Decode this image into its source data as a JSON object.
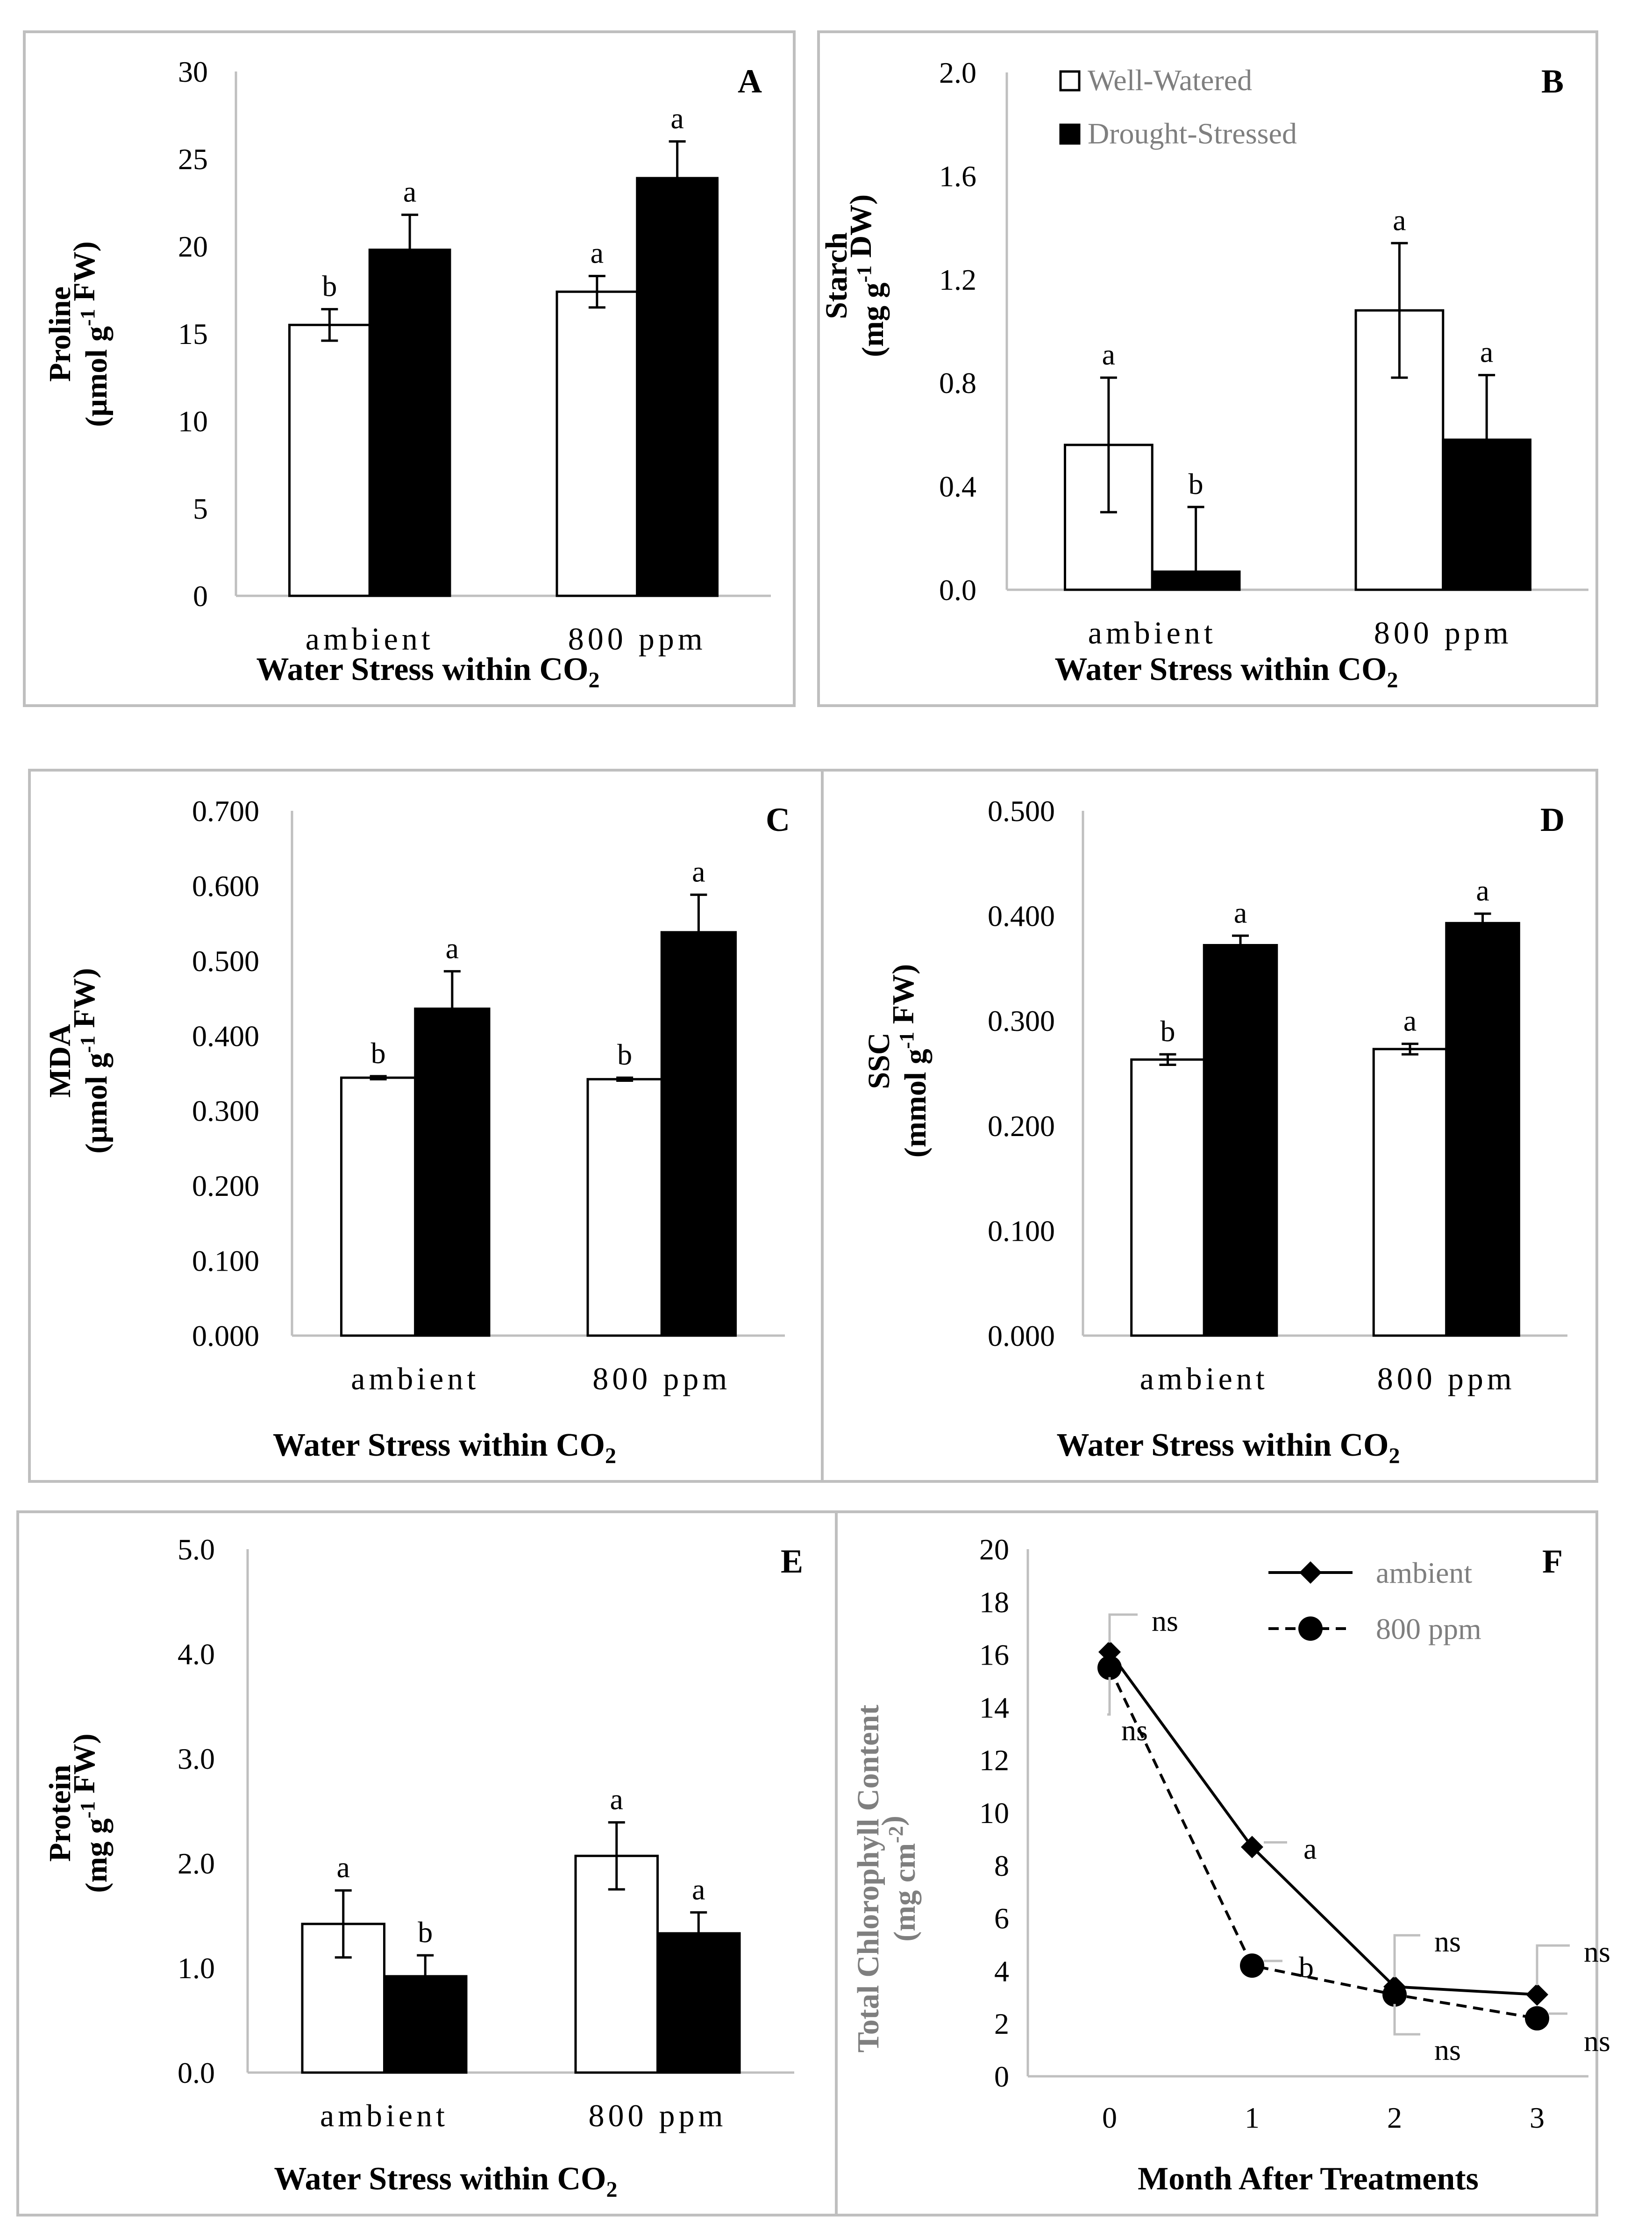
{
  "figure": {
    "legend": {
      "well_watered": "Well-Watered",
      "drought_stressed": "Drought-Stressed"
    },
    "colors": {
      "well_watered": "#ffffff",
      "drought_stressed": "#000000",
      "frame": "#bfbfbf",
      "axis": "#bfbfbf",
      "ink": "#000000",
      "gray_text": "#7f7f7f"
    }
  },
  "chart_data": [
    {
      "panel": "A",
      "type": "bar",
      "ylabel": "Proline",
      "ylabel_unit": "(µmol g⁻¹ FW)",
      "xlabel": "Water Stress within CO₂",
      "categories": [
        "ambient",
        "800 ppm"
      ],
      "ylim": [
        0,
        30
      ],
      "yticks": [
        "0",
        "5",
        "10",
        "15",
        "20",
        "25",
        "30"
      ],
      "series": [
        {
          "name": "Well-Watered",
          "values": [
            15.5,
            17.4
          ],
          "errors": [
            0.9,
            0.9
          ],
          "letters": [
            "b",
            "a"
          ]
        },
        {
          "name": "Drought-Stressed",
          "values": [
            19.8,
            23.9
          ],
          "errors": [
            2.0,
            2.1
          ],
          "letters": [
            "a",
            "a"
          ]
        }
      ]
    },
    {
      "panel": "B",
      "type": "bar",
      "ylabel": "Starch",
      "ylabel_unit": "(mg g⁻¹ DW)",
      "xlabel": "Water Stress within CO₂",
      "categories": [
        "ambient",
        "800 ppm"
      ],
      "ylim": [
        0,
        2.0
      ],
      "yticks": [
        "0.0",
        "0.4",
        "0.8",
        "1.2",
        "1.6",
        "2.0"
      ],
      "series": [
        {
          "name": "Well-Watered",
          "values": [
            0.56,
            1.08
          ],
          "errors": [
            0.26,
            0.26
          ],
          "letters": [
            "a",
            "a"
          ]
        },
        {
          "name": "Drought-Stressed",
          "values": [
            0.07,
            0.58
          ],
          "errors": [
            0.25,
            0.25
          ],
          "letters": [
            "b",
            "a"
          ]
        }
      ]
    },
    {
      "panel": "C",
      "type": "bar",
      "ylabel": "MDA",
      "ylabel_unit": "(µmol g⁻¹ FW)",
      "xlabel": "Water Stress within CO₂",
      "categories": [
        "ambient",
        "800 ppm"
      ],
      "ylim": [
        0,
        0.7
      ],
      "yticks": [
        "0.000",
        "0.100",
        "0.200",
        "0.300",
        "0.400",
        "0.500",
        "0.600",
        "0.700"
      ],
      "series": [
        {
          "name": "Well-Watered",
          "values": [
            0.344,
            0.342
          ],
          "errors": [
            0.002,
            0.002
          ],
          "letters": [
            "b",
            "b"
          ]
        },
        {
          "name": "Drought-Stressed",
          "values": [
            0.436,
            0.538
          ],
          "errors": [
            0.05,
            0.05
          ],
          "letters": [
            "a",
            "a"
          ]
        }
      ]
    },
    {
      "panel": "D",
      "type": "bar",
      "ylabel": "SSC",
      "ylabel_unit": "(mmol g⁻¹  FW)",
      "xlabel": "Water Stress within CO₂",
      "categories": [
        "ambient",
        "800 ppm"
      ],
      "ylim": [
        0,
        0.5
      ],
      "yticks": [
        "0.000",
        "0.100",
        "0.200",
        "0.300",
        "0.400",
        "0.500"
      ],
      "series": [
        {
          "name": "Well-Watered",
          "values": [
            0.263,
            0.273
          ],
          "errors": [
            0.005,
            0.005
          ],
          "letters": [
            "b",
            "a"
          ]
        },
        {
          "name": "Drought-Stressed",
          "values": [
            0.372,
            0.393
          ],
          "errors": [
            0.009,
            0.009
          ],
          "letters": [
            "a",
            "a"
          ]
        }
      ]
    },
    {
      "panel": "E",
      "type": "bar",
      "ylabel": "Protein",
      "ylabel_unit": "(mg g⁻¹ FW)",
      "xlabel": "Water Stress within CO₂",
      "categories": [
        "ambient",
        "800 ppm"
      ],
      "ylim": [
        0,
        5.0
      ],
      "yticks": [
        "0.0",
        "1.0",
        "2.0",
        "3.0",
        "4.0",
        "5.0"
      ],
      "series": [
        {
          "name": "Well-Watered",
          "values": [
            1.42,
            2.07
          ],
          "errors": [
            0.32,
            0.32
          ],
          "letters": [
            "a",
            "a"
          ]
        },
        {
          "name": "Drought-Stressed",
          "values": [
            0.92,
            1.33
          ],
          "errors": [
            0.2,
            0.2
          ],
          "letters": [
            "b",
            "a"
          ]
        }
      ]
    },
    {
      "panel": "F",
      "type": "line",
      "ylabel": "Total Chlorophyll Content",
      "ylabel_unit": "(mg cm⁻²)",
      "xlabel": "Month After Treatments",
      "x": [
        0,
        1,
        2,
        3
      ],
      "xticks": [
        "0",
        "1",
        "2",
        "3"
      ],
      "ylim": [
        0,
        20
      ],
      "yticks": [
        "0",
        "2",
        "4",
        "6",
        "8",
        "10",
        "12",
        "14",
        "16",
        "18",
        "20"
      ],
      "series": [
        {
          "name": "ambient",
          "values": [
            16.1,
            8.7,
            3.4,
            3.1
          ],
          "marker": "diamond",
          "dash": "solid"
        },
        {
          "name": "800 ppm",
          "values": [
            15.5,
            4.2,
            3.1,
            2.2
          ],
          "marker": "circle",
          "dash": "dashed"
        }
      ],
      "annotations": [
        "ns",
        "ns",
        "a",
        "b",
        "ns",
        "ns",
        "ns",
        "ns"
      ]
    }
  ]
}
